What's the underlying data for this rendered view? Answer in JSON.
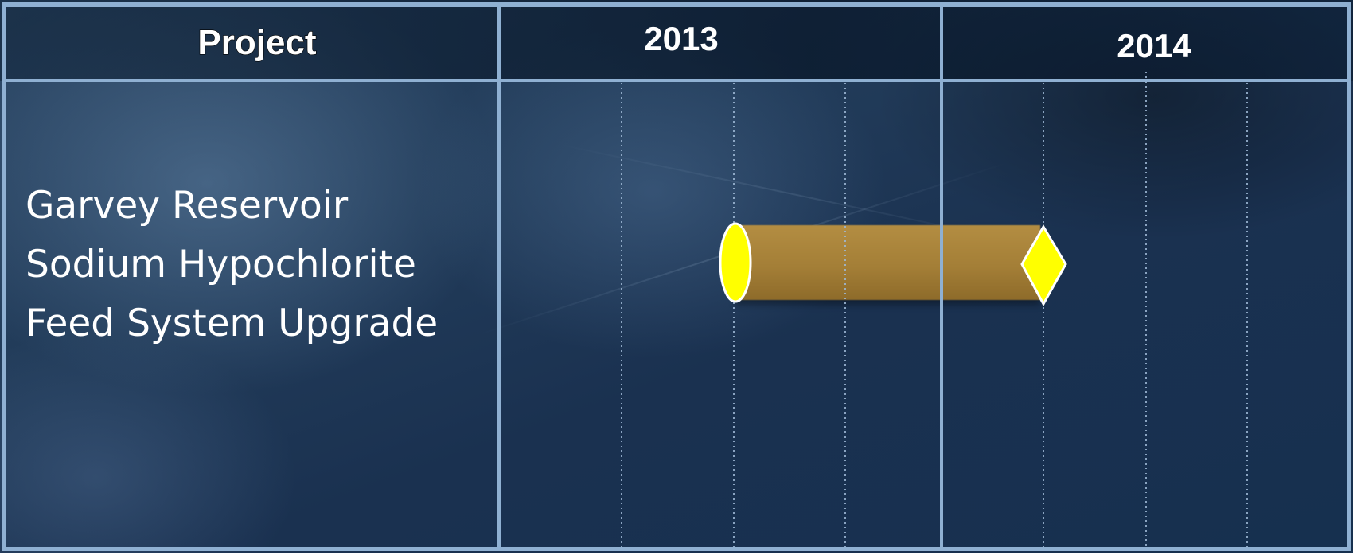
{
  "header": {
    "project_label": "Project",
    "years": [
      "2013",
      "2014"
    ]
  },
  "projects": [
    {
      "name_lines": [
        "Garvey Reservoir",
        "Sodium Hypochlorite",
        "Feed System Upgrade"
      ],
      "start_marker": "ellipse",
      "end_marker": "diamond"
    }
  ],
  "colors": {
    "bar_fill": "#a47f37",
    "marker_fill": "#ffff00",
    "grid_line": "#9fb9d6",
    "text": "#ffffff"
  }
}
